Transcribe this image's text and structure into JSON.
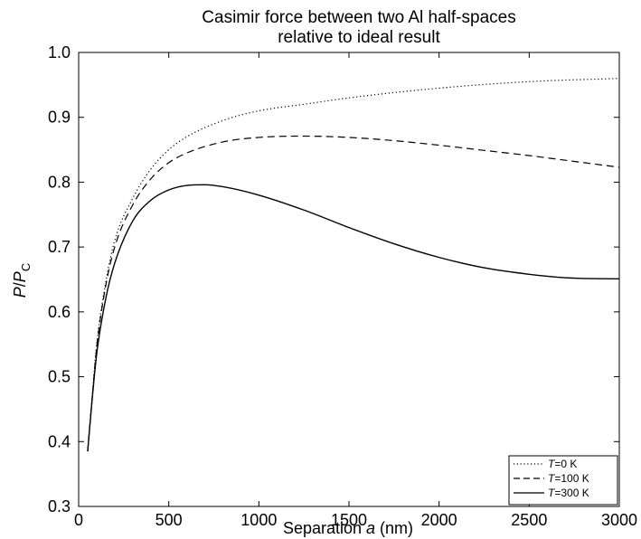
{
  "chart_data": {
    "type": "line",
    "title_lines": [
      "Casimir force between two Al half-spaces",
      "relative to ideal result"
    ],
    "xlabel_prefix": "Separation ",
    "xlabel_var": "a",
    "xlabel_suffix": " (nm)",
    "ylabel_var": "P",
    "ylabel_slash": "/",
    "ylabel_sub": "C",
    "xlim": [
      0,
      3000
    ],
    "ylim": [
      0.3,
      1.0
    ],
    "xticks": [
      0,
      500,
      1000,
      1500,
      2000,
      2500,
      3000
    ],
    "yticks": [
      0.3,
      0.4,
      0.5,
      0.6,
      0.7,
      0.8,
      0.9,
      1.0
    ],
    "xtick_labels": [
      "0",
      "500",
      "1000",
      "1500",
      "2000",
      "2500",
      "3000"
    ],
    "ytick_labels": [
      "0.3",
      "0.4",
      "0.5",
      "0.6",
      "0.7",
      "0.8",
      "0.9",
      "1.0"
    ],
    "grid": false,
    "legend_position": "bottom-right",
    "series": [
      {
        "name": "T=0 K",
        "name_var": "T",
        "name_rest": "=0 K",
        "style": "dotted",
        "x": [
          50,
          75,
          100,
          150,
          200,
          300,
          400,
          500,
          600,
          800,
          1000,
          1250,
          1500,
          2000,
          2500,
          3000
        ],
        "y": [
          0.385,
          0.47,
          0.55,
          0.645,
          0.71,
          0.775,
          0.82,
          0.85,
          0.87,
          0.895,
          0.91,
          0.92,
          0.93,
          0.945,
          0.955,
          0.96
        ]
      },
      {
        "name": "T=100 K",
        "name_var": "T",
        "name_rest": "=100 K",
        "style": "dashed",
        "x": [
          50,
          75,
          100,
          150,
          200,
          300,
          400,
          500,
          600,
          800,
          1000,
          1250,
          1500,
          1750,
          2000,
          2250,
          2500,
          2750,
          3000
        ],
        "y": [
          0.385,
          0.468,
          0.545,
          0.64,
          0.7,
          0.765,
          0.805,
          0.83,
          0.845,
          0.862,
          0.869,
          0.871,
          0.869,
          0.864,
          0.857,
          0.849,
          0.841,
          0.832,
          0.823
        ]
      },
      {
        "name": "T=300 K",
        "name_var": "T",
        "name_rest": "=300 K",
        "style": "solid",
        "x": [
          50,
          75,
          100,
          150,
          200,
          300,
          400,
          500,
          600,
          700,
          800,
          1000,
          1250,
          1500,
          1750,
          2000,
          2250,
          2500,
          2750,
          3000
        ],
        "y": [
          0.385,
          0.465,
          0.535,
          0.62,
          0.675,
          0.74,
          0.772,
          0.788,
          0.795,
          0.796,
          0.793,
          0.78,
          0.757,
          0.73,
          0.705,
          0.684,
          0.668,
          0.658,
          0.652,
          0.651
        ]
      }
    ]
  }
}
